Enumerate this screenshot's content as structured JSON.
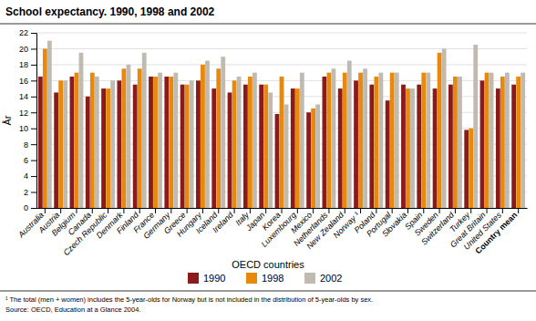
{
  "chart_data": {
    "type": "bar",
    "title": "School expectancy. 1990, 1998 and 2002",
    "xlabel": "OECD countries",
    "ylabel": "År",
    "categories": [
      "Australia",
      "Austria",
      "Belgium",
      "Canada",
      "Czech Republic",
      "Denmark",
      "Finland",
      "France",
      "Germany",
      "Greece",
      "Hungary",
      "Iceland",
      "Ireland",
      "Italy",
      "Japan",
      "Korea",
      "Luxembourg",
      "Mexico",
      "Netherlands",
      "New Zealand",
      "Norway ¹",
      "Poland",
      "Portugal",
      "Slovakia",
      "Spain",
      "Sweden",
      "Switzerland",
      "Turkey",
      "Great Britain",
      "United States",
      "Country mean"
    ],
    "series": [
      {
        "name": "1990",
        "color": "#8B1A1A",
        "values": [
          16.5,
          14.5,
          16.5,
          14.0,
          15.0,
          16.0,
          15.5,
          16.5,
          16.5,
          15.5,
          16.0,
          15.0,
          14.5,
          15.5,
          15.5,
          11.8,
          15.0,
          12.0,
          16.5,
          15.0,
          16.0,
          15.5,
          13.5,
          15.5,
          15.5,
          15.0,
          15.5,
          9.8,
          16.0,
          15.0,
          15.5
        ]
      },
      {
        "name": "1998",
        "color": "#E8890C",
        "values": [
          20.0,
          16.0,
          17.0,
          17.0,
          15.0,
          17.5,
          17.5,
          16.5,
          16.5,
          15.5,
          18.0,
          17.5,
          16.0,
          16.5,
          15.5,
          16.5,
          15.0,
          12.5,
          17.0,
          17.0,
          17.0,
          16.5,
          17.0,
          15.0,
          17.0,
          19.5,
          16.5,
          10.0,
          17.0,
          16.5,
          16.5
        ]
      },
      {
        "name": "2002",
        "color": "#C0BAB0",
        "values": [
          21.0,
          16.0,
          19.5,
          16.5,
          16.0,
          18.0,
          19.5,
          17.0,
          17.0,
          16.0,
          18.5,
          19.0,
          16.5,
          17.0,
          14.5,
          13.0,
          17.0,
          13.0,
          17.5,
          18.5,
          17.5,
          17.0,
          17.0,
          15.0,
          17.0,
          20.0,
          16.5,
          20.5,
          17.0,
          17.0,
          17.0
        ]
      }
    ],
    "ylim": [
      0,
      22
    ],
    "yticks": [
      0,
      2,
      4,
      6,
      8,
      10,
      12,
      14,
      16,
      18,
      20,
      22
    ],
    "grid": true,
    "legend": "bottom",
    "annotations": [
      "¹ The total (men + women) includes the 5-year-olds for Norway but is not included in the distribution of 5-year-olds by sex.",
      "Source: OECD, Education at a Glance 2004."
    ]
  }
}
